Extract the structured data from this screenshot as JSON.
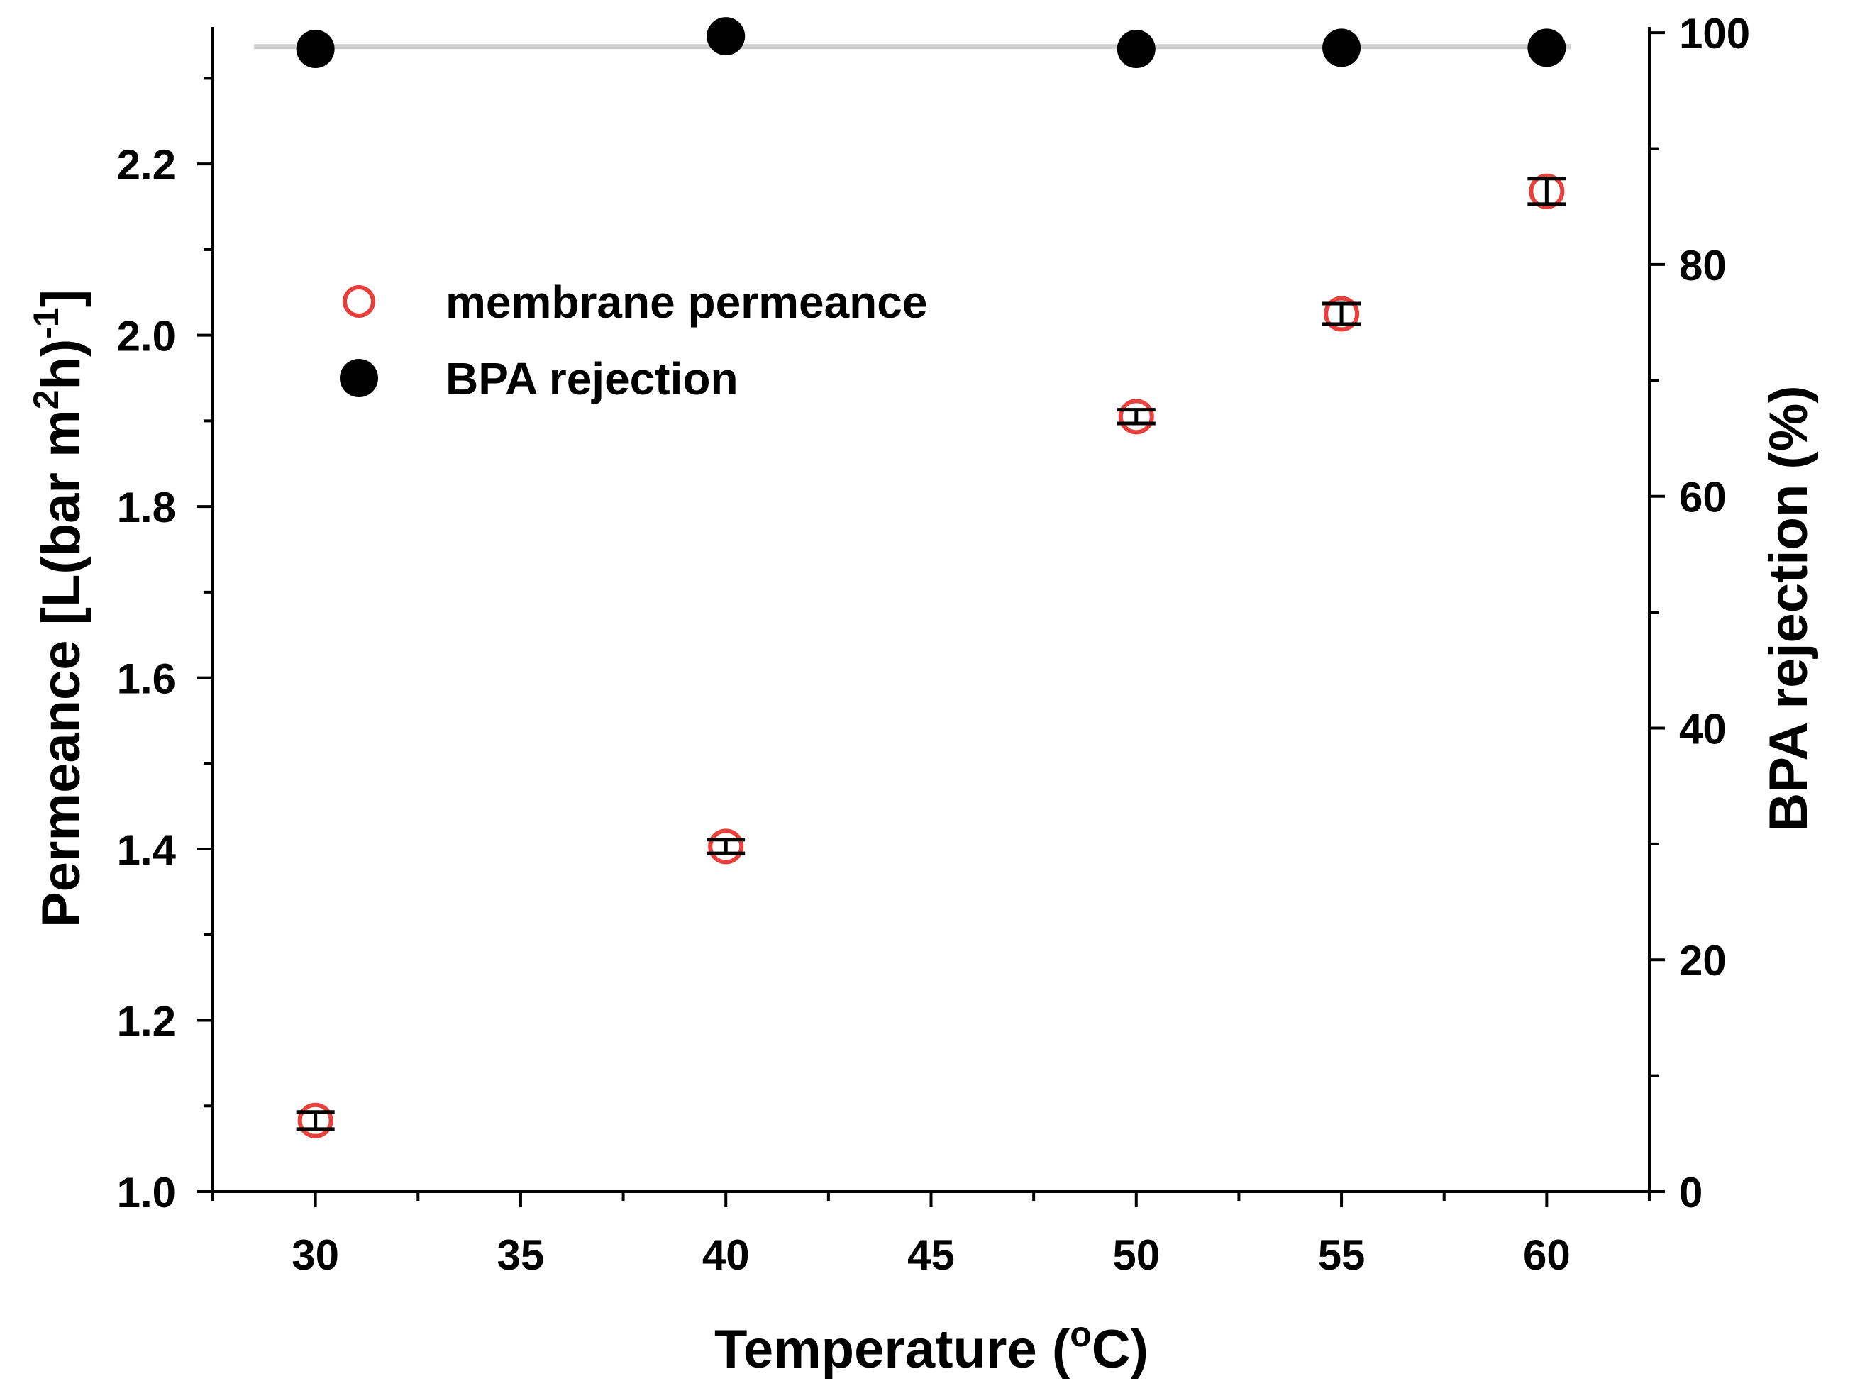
{
  "chart_data": {
    "type": "scatter",
    "x_axis": {
      "label_main": "Temperature (",
      "label_sup": "o",
      "label_end": "C)",
      "min": 27.5,
      "max": 62.5,
      "major_ticks": [
        30,
        35,
        40,
        45,
        50,
        55,
        60
      ],
      "tick_labels": [
        "30",
        "35",
        "40",
        "45",
        "50",
        "55",
        "60"
      ]
    },
    "y_axis_left": {
      "label_main": "Permeance [L(bar m",
      "label_sup1": "2",
      "label_mid": "h)",
      "label_sup2": "-1",
      "label_end": "]",
      "min": 1.0,
      "max": 2.36,
      "major_ticks": [
        1.0,
        1.2,
        1.4,
        1.6,
        1.8,
        2.0,
        2.2
      ],
      "tick_labels": [
        "1.0",
        "1.2",
        "1.4",
        "1.6",
        "1.8",
        "2.0",
        "2.2"
      ]
    },
    "y_axis_right": {
      "label": "BPA rejection (%)",
      "min": 0,
      "max": 100.5,
      "major_ticks": [
        0,
        20,
        40,
        60,
        80,
        100
      ],
      "tick_labels": [
        "0",
        "20",
        "40",
        "60",
        "80",
        "100"
      ]
    },
    "series": [
      {
        "name": "membrane permeance",
        "axis": "left",
        "marker": "open-circle",
        "color": "#e8403c",
        "x": [
          30,
          40,
          50,
          55,
          60
        ],
        "y": [
          1.083,
          1.403,
          1.905,
          2.025,
          2.168
        ],
        "error": [
          0.01,
          0.008,
          0.008,
          0.012,
          0.015
        ]
      },
      {
        "name": "BPA rejection",
        "axis": "right",
        "marker": "filled-circle",
        "color": "#000000",
        "x": [
          30,
          40,
          50,
          55,
          60
        ],
        "y": [
          98.6,
          99.7,
          98.6,
          98.7,
          98.7
        ]
      }
    ],
    "reference_line": {
      "axis": "right",
      "y": 98.8,
      "x_range": [
        28.5,
        60.6
      ],
      "color": "#d0d0d0"
    },
    "legend": {
      "position": "upper-left",
      "items": [
        "membrane permeance",
        "BPA rejection"
      ]
    }
  }
}
